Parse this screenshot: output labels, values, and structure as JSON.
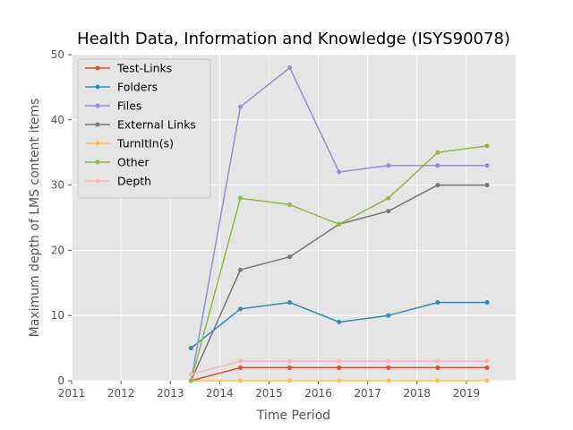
{
  "chart_data": {
    "type": "line",
    "title": "Health Data, Information and Knowledge (ISYS90078)",
    "xlabel": "Time Period",
    "ylabel": "Maximum depth of LMS content items",
    "xlim": [
      2011,
      2020
    ],
    "ylim": [
      0,
      50
    ],
    "xticks": [
      2011,
      2012,
      2013,
      2014,
      2015,
      2016,
      2017,
      2018,
      2019
    ],
    "yticks": [
      0,
      10,
      20,
      30,
      40,
      50
    ],
    "grid": true,
    "legend_position": "top-left",
    "x": [
      2013.42,
      2014.42,
      2015.42,
      2016.42,
      2017.42,
      2018.42,
      2019.42
    ],
    "series": [
      {
        "name": "Test-Links",
        "color": "#E24A33",
        "values": [
          0,
          2,
          2,
          2,
          2,
          2,
          2
        ]
      },
      {
        "name": "Folders",
        "color": "#348ABD",
        "values": [
          5,
          11,
          12,
          9,
          10,
          12,
          12
        ]
      },
      {
        "name": "Files",
        "color": "#988ED5",
        "values": [
          0,
          42,
          48,
          32,
          33,
          33,
          33
        ]
      },
      {
        "name": "External Links",
        "color": "#777777",
        "values": [
          0,
          17,
          19,
          24,
          26,
          30,
          30
        ]
      },
      {
        "name": "TurnItIn(s)",
        "color": "#FBC15E",
        "values": [
          0,
          0,
          0,
          0,
          0,
          0,
          0
        ]
      },
      {
        "name": "Other",
        "color": "#8EBA42",
        "values": [
          0,
          28,
          27,
          24,
          28,
          35,
          36
        ]
      },
      {
        "name": "Depth",
        "color": "#FFB5B8",
        "values": [
          1,
          3,
          3,
          3,
          3,
          3,
          3
        ]
      }
    ]
  }
}
